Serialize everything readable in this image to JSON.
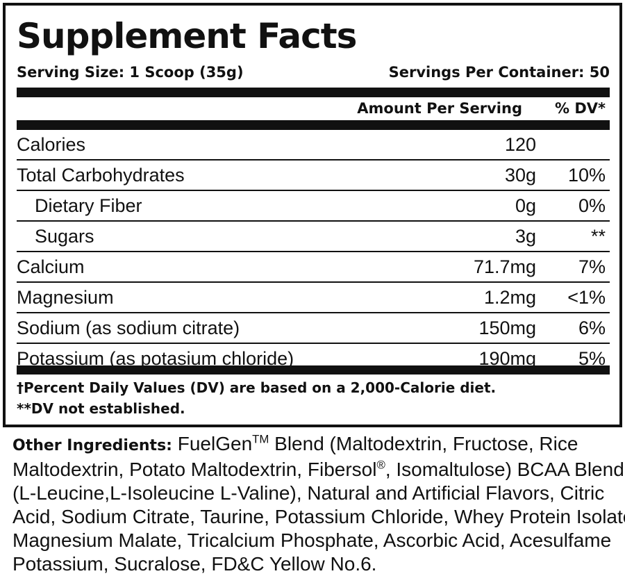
{
  "title": "Supplement Facts",
  "serving_size": "Serving Size: 1 Scoop (35g)",
  "servings_per_container": "Servings Per Container: 50",
  "header": {
    "amount": "Amount Per Serving",
    "dv": "% DV*"
  },
  "nutrients": [
    {
      "name": "Calories",
      "amount": "120",
      "dv": ""
    },
    {
      "name": "Total Carbohydrates",
      "amount": "30g",
      "dv": "10%"
    },
    {
      "name": "Dietary Fiber",
      "amount": "0g",
      "dv": "0%"
    },
    {
      "name": "Sugars",
      "amount": "3g",
      "dv": "**"
    },
    {
      "name": "Calcium",
      "amount": "71.7mg",
      "dv": "7%"
    },
    {
      "name": "Magnesium",
      "amount": "1.2mg",
      "dv": "<1%"
    },
    {
      "name": "Sodium (as sodium citrate)",
      "amount": "150mg",
      "dv": "6%"
    },
    {
      "name": "Potassium (as potasium chloride)",
      "amount": "190mg",
      "dv": "5%"
    }
  ],
  "footnotes": {
    "line1": "†Percent Daily Values (DV) are based on a 2,000-Calorie diet.",
    "line2": "**DV not established."
  },
  "ingredients": {
    "label": "Other Ingredients:",
    "l1_a": " FuelGen",
    "l1_tm": "TM",
    "l1_b": " Blend (Maltodextrin, Fructose, Rice",
    "l2_a": "Maltodextrin, Potato Maltodextrin, Fibersol",
    "l2_reg": "®",
    "l2_b": ", Isomaltulose) BCAA Blend",
    "l3": "(L-Leucine,L-Isoleucine L-Valine), Natural and Artificial Flavors, Citric",
    "l4": "Acid, Sodium Citrate, Taurine, Potassium Chloride, Whey Protein Isolate,",
    "l5": "Magnesium Malate, Tricalcium Phosphate, Ascorbic Acid, Acesulfame",
    "l6": "Potassium, Sucralose, FD&C Yellow No.6."
  }
}
